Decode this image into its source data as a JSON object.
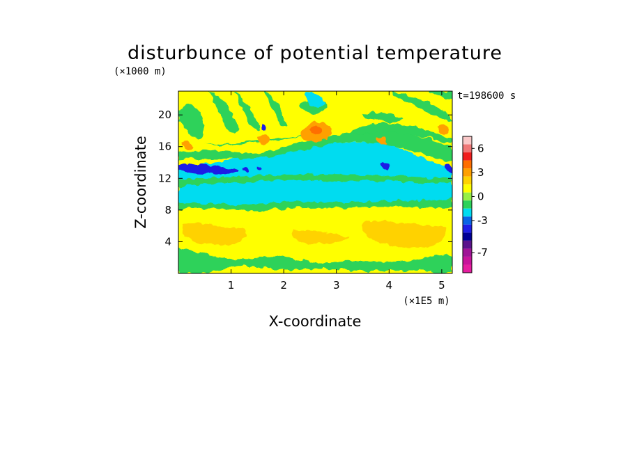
{
  "chart_data": {
    "type": "heatmap",
    "title": "disturbunce of potential temperature",
    "xlabel": "X-coordinate",
    "ylabel": "Z-coordinate",
    "x_unit": "(×1E5 m)",
    "y_unit": "(×1000 m)",
    "time_label": "t=198600 s",
    "xlim": [
      0,
      5.2
    ],
    "ylim": [
      0,
      23
    ],
    "x_ticks": [
      1,
      2,
      3,
      4,
      5
    ],
    "y_ticks": [
      4,
      8,
      12,
      16,
      20
    ],
    "colorbar": {
      "levels": [
        {
          "value": -9,
          "color": "#e61ea0"
        },
        {
          "value": -8,
          "color": "#c8149b"
        },
        {
          "value": -7,
          "color": "#a01496"
        },
        {
          "value": -6,
          "color": "#5a148c"
        },
        {
          "value": -5,
          "color": "#000096"
        },
        {
          "value": -4,
          "color": "#1e1ee6"
        },
        {
          "value": -3,
          "color": "#0a64e6"
        },
        {
          "value": -2,
          "color": "#00dcf0"
        },
        {
          "value": -1,
          "color": "#2dd25a"
        },
        {
          "value": 0,
          "color": "#96f046"
        },
        {
          "value": 1,
          "color": "#ffff00"
        },
        {
          "value": 2,
          "color": "#ffd200"
        },
        {
          "value": 3,
          "color": "#ffa000"
        },
        {
          "value": 4,
          "color": "#ff6e00"
        },
        {
          "value": 5,
          "color": "#f01e1e"
        },
        {
          "value": 6,
          "color": "#f07878"
        },
        {
          "value": 7,
          "color": "#fac8c8"
        }
      ],
      "tick_labels": [
        "6",
        "3",
        "0",
        "-3",
        "-7"
      ]
    }
  }
}
